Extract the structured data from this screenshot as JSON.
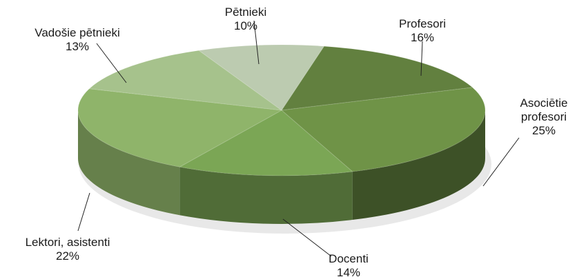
{
  "chart_data": {
    "type": "pie",
    "categories": [
      "Profesori",
      "Asociētie profesori",
      "Docenti",
      "Lektori, asistenti",
      "Vadošie pētnieki",
      "Pētnieki"
    ],
    "values": [
      16,
      25,
      14,
      22,
      13,
      10
    ],
    "value_labels": [
      "16%",
      "25%",
      "14%",
      "22%",
      "13%",
      "10%"
    ],
    "colors": [
      "#62803f",
      "#6f9347",
      "#7ba655",
      "#8fb46a",
      "#a6c28c",
      "#bccbb0"
    ]
  }
}
